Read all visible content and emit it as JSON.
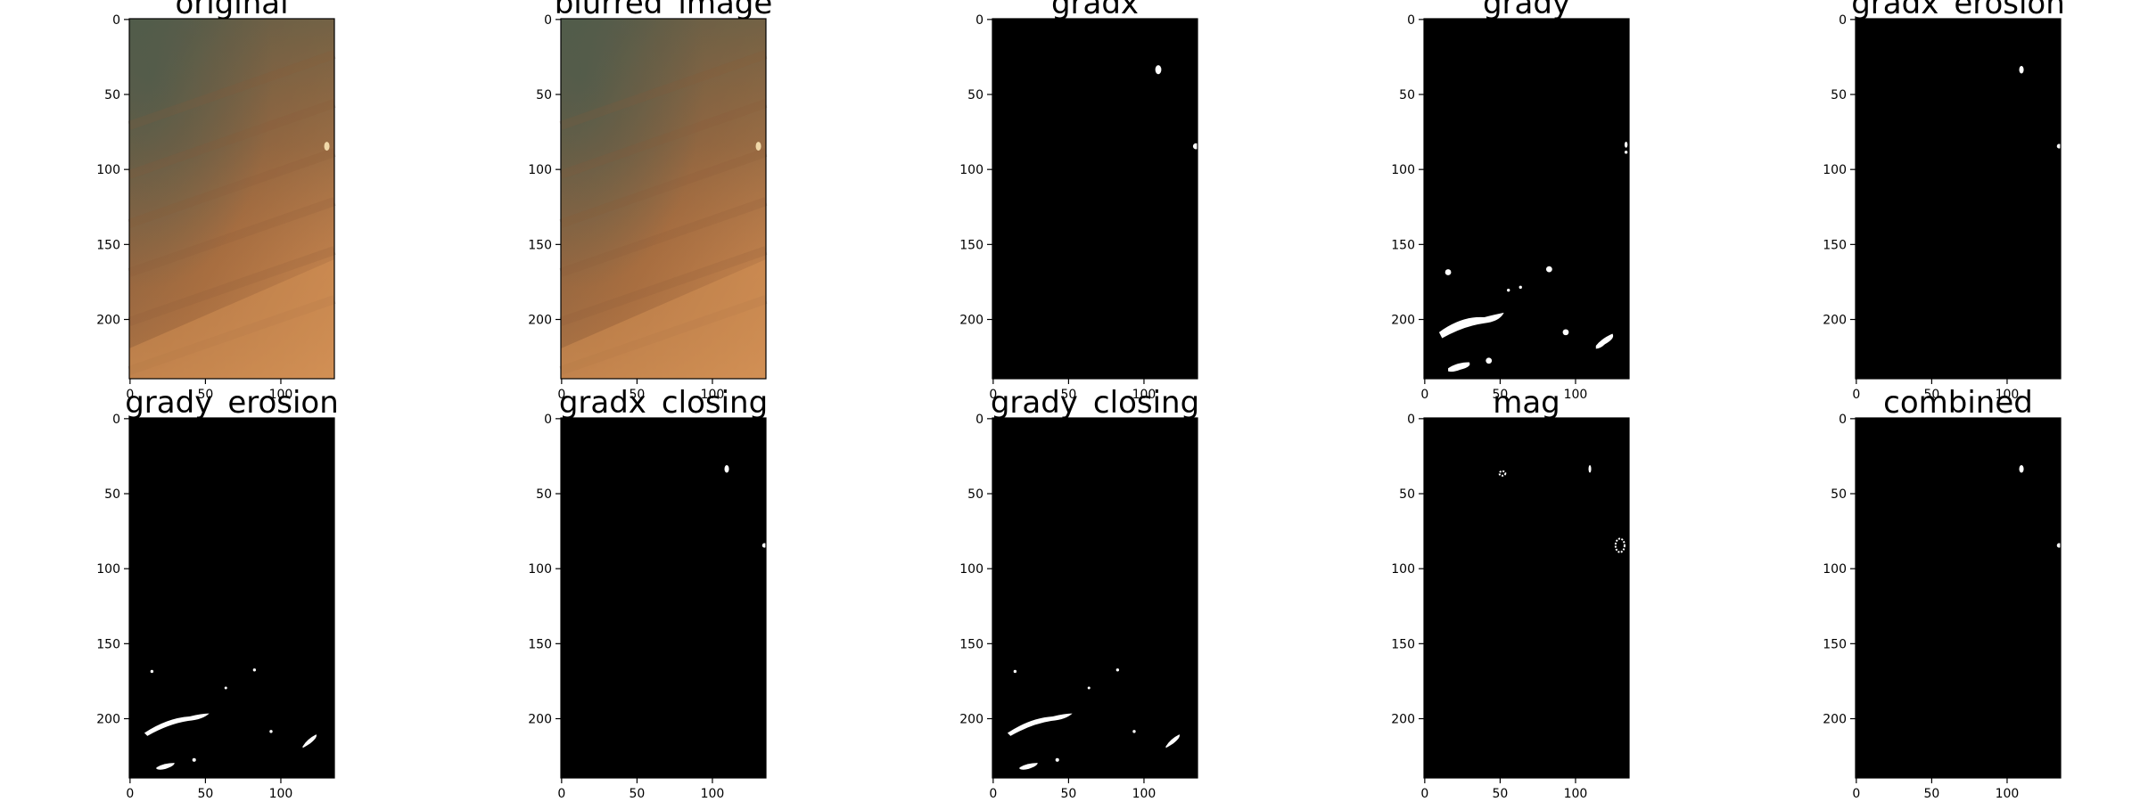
{
  "figure": {
    "panels": [
      {
        "id": "original",
        "title": "original",
        "kind": "photo",
        "x_ticks": [
          "0",
          "50",
          "100"
        ],
        "y_ticks": [
          "0",
          "50",
          "100",
          "150",
          "200"
        ]
      },
      {
        "id": "blurred",
        "title": "blurred_image",
        "kind": "photo",
        "x_ticks": [
          "0",
          "50",
          "100"
        ],
        "y_ticks": [
          "0",
          "50",
          "100",
          "150",
          "200"
        ]
      },
      {
        "id": "gradx",
        "title": "gradx",
        "kind": "mask",
        "x_ticks": [
          "0",
          "50",
          "100"
        ],
        "y_ticks": [
          "0",
          "50",
          "100",
          "150",
          "200"
        ]
      },
      {
        "id": "grady",
        "title": "grady",
        "kind": "mask",
        "x_ticks": [
          "0",
          "50",
          "100"
        ],
        "y_ticks": [
          "0",
          "50",
          "100",
          "150",
          "200"
        ]
      },
      {
        "id": "gradx_erosion",
        "title": "gradx_erosion",
        "kind": "mask",
        "x_ticks": [
          "0",
          "50",
          "100"
        ],
        "y_ticks": [
          "0",
          "50",
          "100",
          "150",
          "200"
        ]
      },
      {
        "id": "grady_erosion",
        "title": "grady_erosion",
        "kind": "mask",
        "x_ticks": [
          "0",
          "50",
          "100"
        ],
        "y_ticks": [
          "0",
          "50",
          "100",
          "150",
          "200"
        ]
      },
      {
        "id": "gradx_closing",
        "title": "gradx_closing",
        "kind": "mask",
        "x_ticks": [
          "0",
          "50",
          "100"
        ],
        "y_ticks": [
          "0",
          "50",
          "100",
          "150",
          "200"
        ]
      },
      {
        "id": "grady_closing",
        "title": "grady_closing",
        "kind": "mask",
        "x_ticks": [
          "0",
          "50",
          "100"
        ],
        "y_ticks": [
          "0",
          "50",
          "100",
          "150",
          "200"
        ]
      },
      {
        "id": "mag",
        "title": "mag",
        "kind": "mask",
        "x_ticks": [
          "0",
          "50",
          "100"
        ],
        "y_ticks": [
          "0",
          "50",
          "100",
          "150",
          "200"
        ]
      },
      {
        "id": "combined",
        "title": "combined",
        "kind": "mask",
        "x_ticks": [
          "0",
          "50",
          "100"
        ],
        "y_ticks": [
          "0",
          "50",
          "100",
          "150",
          "200"
        ]
      }
    ],
    "colors": {
      "mask_background": "#000000",
      "mask_foreground": "#ffffff",
      "photo_skin_dark": "#7d5a3a",
      "photo_skin_mid": "#b0733f",
      "photo_skin_light": "#c98a52",
      "photo_shadow": "#5b5a48"
    }
  }
}
